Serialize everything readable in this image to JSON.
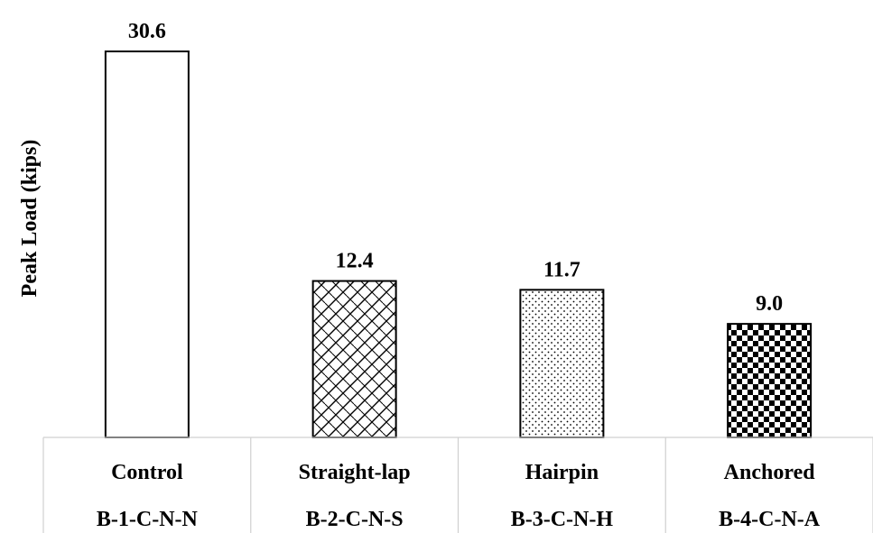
{
  "chart_data": {
    "type": "bar",
    "ylabel": "Peak Load (kips)",
    "categories": [
      "Control",
      "Straight-lap",
      "Hairpin",
      "Anchored"
    ],
    "category_codes": [
      "B-1-C-N-N",
      "B-2-C-N-S",
      "B-3-C-N-H",
      "B-4-C-N-A"
    ],
    "values": [
      30.6,
      12.4,
      11.7,
      9.0
    ],
    "value_labels": [
      "30.6",
      "12.4",
      "11.7",
      "9.0"
    ],
    "fills": [
      "none",
      "diagonal-crosshatch",
      "dots",
      "checkerboard"
    ],
    "ylim": [
      0,
      30.6
    ],
    "grid": false,
    "legend": "none"
  }
}
